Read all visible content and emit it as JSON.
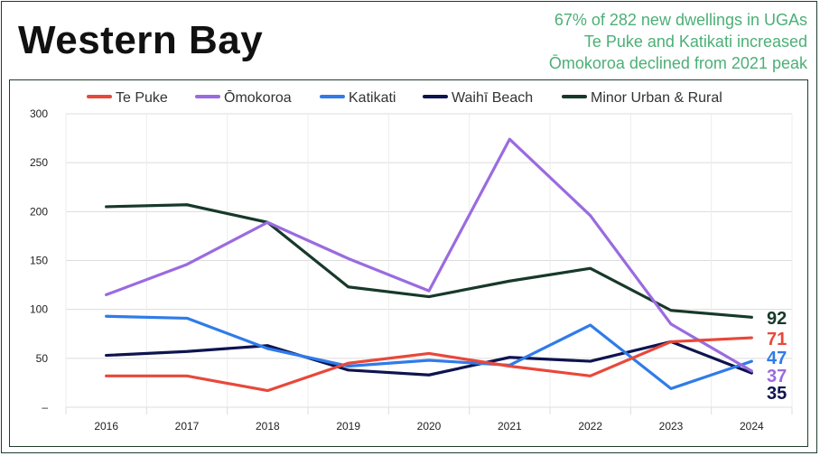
{
  "header": {
    "title": "Western Bay",
    "subtitle_lines": [
      "67% of 282 new dwellings in UGAs",
      "Te Puke and Katikati increased",
      "Ōmokoroa declined from 2021 peak"
    ]
  },
  "chart_data": {
    "type": "line",
    "x": [
      "2016",
      "2017",
      "2018",
      "2019",
      "2020",
      "2021",
      "2022",
      "2023",
      "2024"
    ],
    "ylim": [
      0,
      300
    ],
    "yticks": [
      "300",
      "250",
      "200",
      "150",
      "100",
      "50",
      "–"
    ],
    "grid": true,
    "legend_position": "top",
    "series": [
      {
        "name": "Te Puke",
        "color": "#e8483a",
        "values": [
          32,
          32,
          17,
          45,
          55,
          42,
          32,
          67,
          71
        ],
        "end_label": "71"
      },
      {
        "name": "Ōmokoroa",
        "color": "#9a6be0",
        "values": [
          115,
          146,
          189,
          152,
          119,
          274,
          196,
          85,
          37
        ],
        "end_label": "37"
      },
      {
        "name": "Katikati",
        "color": "#2f7bea",
        "values": [
          93,
          91,
          60,
          42,
          48,
          43,
          84,
          19,
          47
        ],
        "end_label": "47"
      },
      {
        "name": "Waihī Beach",
        "color": "#0e1450",
        "values": [
          53,
          57,
          63,
          38,
          33,
          51,
          47,
          67,
          35
        ],
        "end_label": "35"
      },
      {
        "name": "Minor Urban & Rural",
        "color": "#17392a",
        "values": [
          205,
          207,
          189,
          123,
          113,
          129,
          142,
          99,
          92
        ],
        "end_label": "92"
      }
    ]
  }
}
